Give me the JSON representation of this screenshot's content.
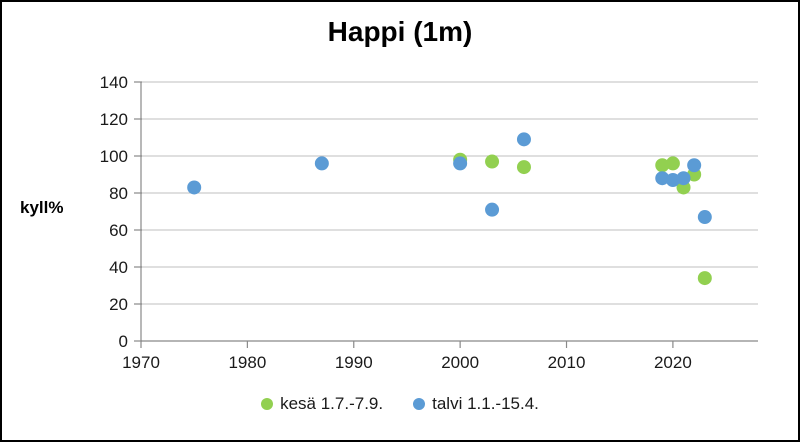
{
  "title": "Happi (1m)",
  "chart_data": {
    "type": "scatter",
    "title": "Happi (1m)",
    "xlabel": "",
    "ylabel": "kyll%",
    "ylim": [
      0,
      140
    ],
    "xlim": [
      1970,
      2028
    ],
    "y_ticks": [
      0,
      20,
      40,
      60,
      80,
      100,
      120,
      140
    ],
    "x_ticks": [
      1970,
      1980,
      1990,
      2000,
      2010,
      2020
    ],
    "grid": "horizontal",
    "grid_color": "#BFBFBF",
    "axis_color": "#898989",
    "tick_label_color": "#1a1a1a",
    "legend_position": "bottom",
    "series": [
      {
        "name": "kesä 1.7.-7.9.",
        "color": "#92D050",
        "points": [
          [
            2000,
            98
          ],
          [
            2003,
            97
          ],
          [
            2006,
            94
          ],
          [
            2019,
            95
          ],
          [
            2020,
            96
          ],
          [
            2021,
            83
          ],
          [
            2022,
            90
          ],
          [
            2023,
            34
          ]
        ]
      },
      {
        "name": "talvi 1.1.-15.4.",
        "color": "#5B9BD5",
        "points": [
          [
            1975,
            83
          ],
          [
            1987,
            96
          ],
          [
            2000,
            96
          ],
          [
            2003,
            71
          ],
          [
            2006,
            109
          ],
          [
            2019,
            88
          ],
          [
            2020,
            87
          ],
          [
            2021,
            88
          ],
          [
            2022,
            95
          ],
          [
            2023,
            67
          ]
        ]
      }
    ]
  }
}
